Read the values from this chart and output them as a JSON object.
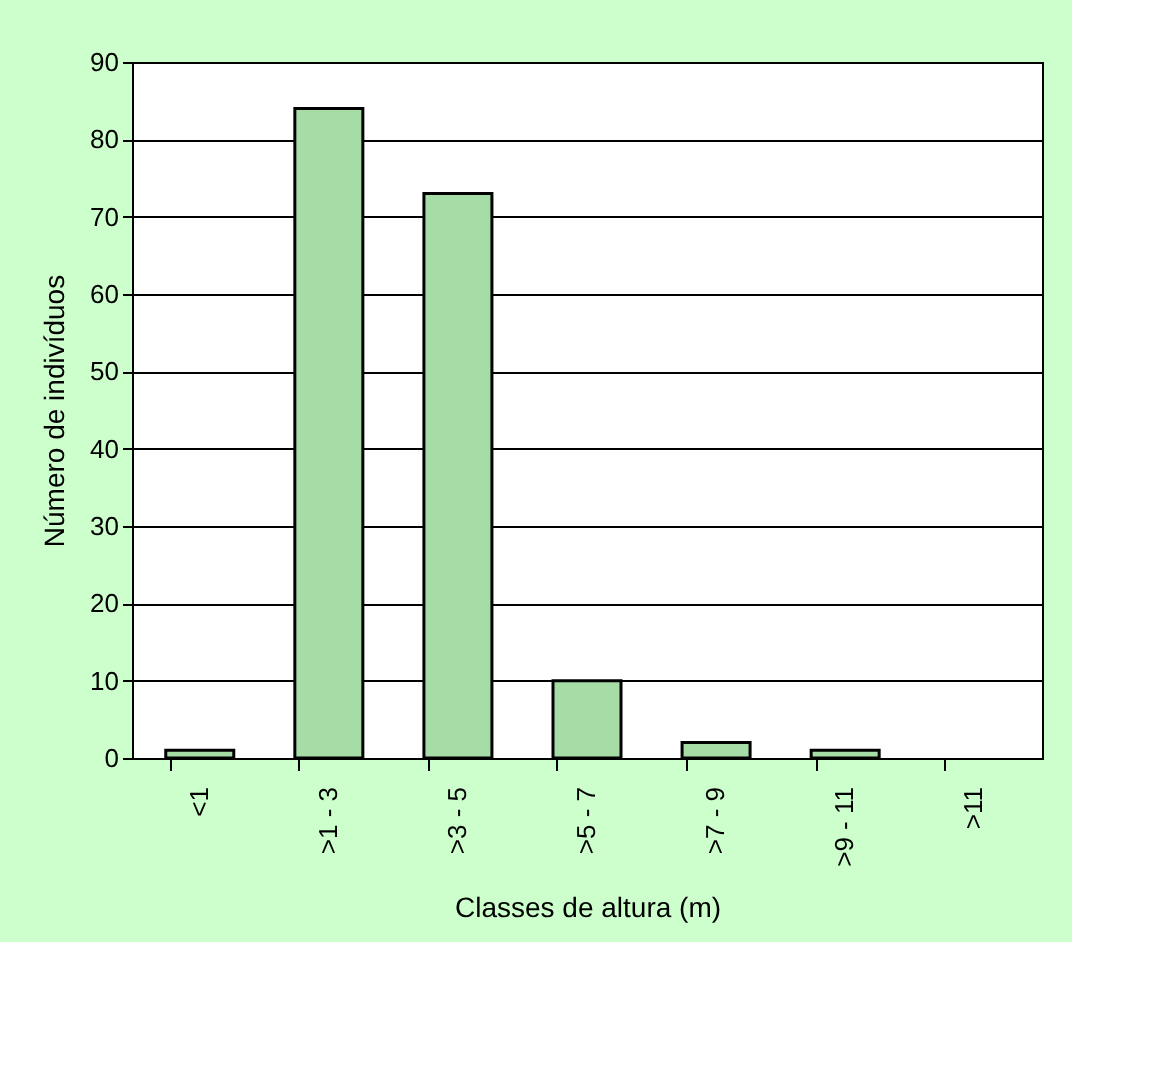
{
  "chart_data": {
    "type": "bar",
    "categories": [
      "<1",
      ">1 - 3",
      ">3 - 5",
      ">5 - 7",
      ">7 - 9",
      ">9 - 11",
      ">11"
    ],
    "values": [
      1,
      84,
      73,
      10,
      2,
      1,
      0
    ],
    "color": "#a6dca6",
    "xlabel": "Classes de altura (m)",
    "ylabel": "Número de indivíduos",
    "ylim": [
      0,
      90
    ],
    "yticks": [
      0,
      10,
      20,
      30,
      40,
      50,
      60,
      70,
      80,
      90
    ],
    "grid": "y"
  }
}
